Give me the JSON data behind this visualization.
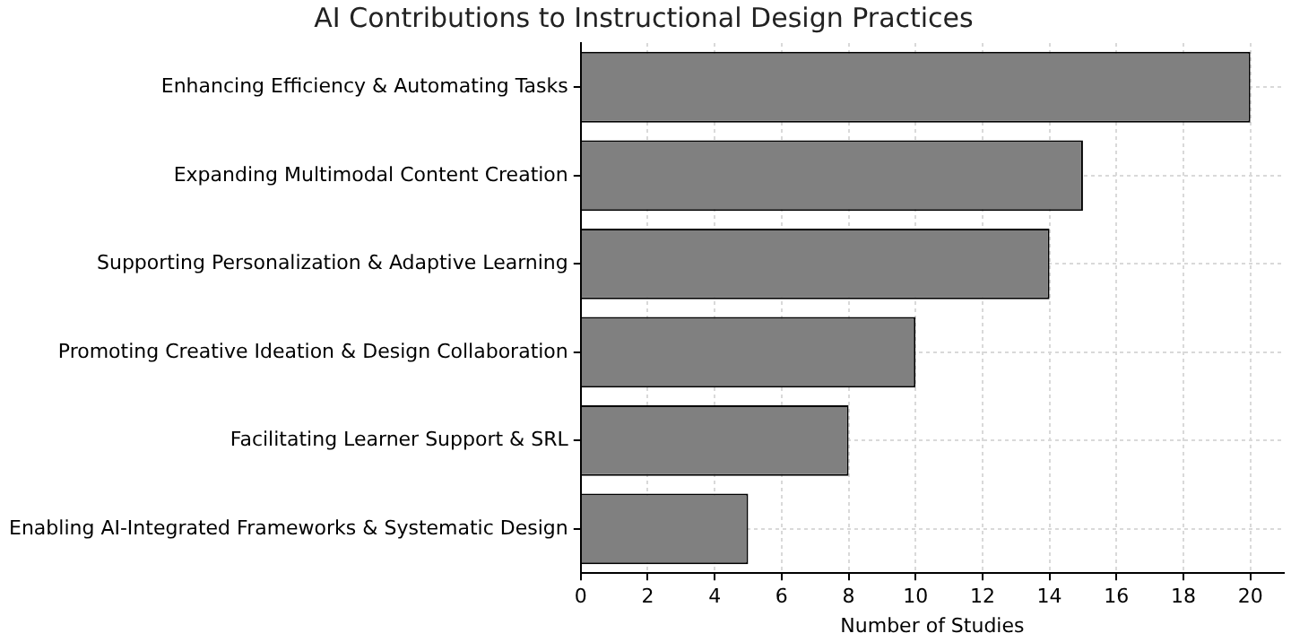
{
  "chart_data": {
    "type": "bar",
    "orientation": "horizontal",
    "title": "AI Contributions to Instructional Design Practices",
    "xlabel": "Number of Studies",
    "categories": [
      "Enhancing Efficiency & Automating Tasks",
      "Expanding Multimodal Content Creation",
      "Supporting Personalization & Adaptive Learning",
      "Promoting Creative Ideation & Design Collaboration",
      "Facilitating Learner Support & SRL",
      "Enabling AI-Integrated Frameworks & Systematic Design"
    ],
    "values": [
      20,
      15,
      14,
      10,
      8,
      5
    ],
    "color": "#808080",
    "xlim": [
      0,
      21
    ],
    "xticks": [
      0,
      2,
      4,
      6,
      8,
      10,
      12,
      14,
      16,
      18,
      20
    ],
    "grid": true,
    "legend": false
  }
}
